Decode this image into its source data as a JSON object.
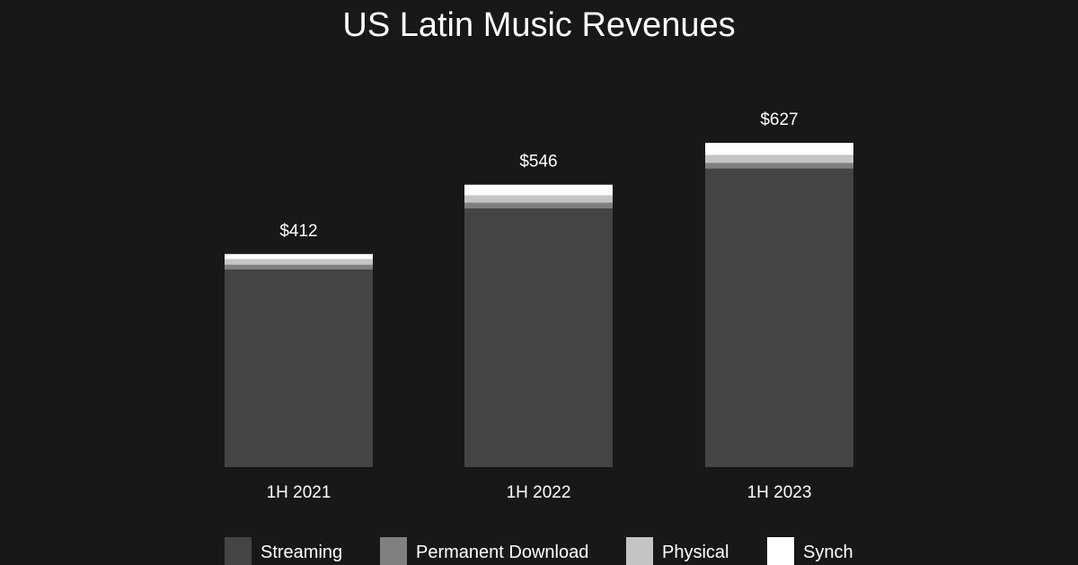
{
  "chart_data": {
    "type": "bar",
    "stacked": true,
    "title": "US Latin Music Revenues",
    "categories": [
      "1H 2021",
      "1H 2022",
      "1H 2023"
    ],
    "totals": [
      "$412",
      "$546",
      "$627"
    ],
    "total_values": [
      412,
      546,
      627
    ],
    "series": [
      {
        "name": "Streaming",
        "color": "#444444",
        "values": [
          382,
          500,
          577
        ]
      },
      {
        "name": "Permanent Download",
        "color": "#808080",
        "values": [
          9,
          11,
          11
        ]
      },
      {
        "name": "Physical",
        "color": "#c4c4c4",
        "values": [
          11,
          14,
          15
        ]
      },
      {
        "name": "Synch",
        "color": "#ffffff",
        "values": [
          10,
          21,
          24
        ]
      }
    ],
    "ylim": [
      0,
      627
    ],
    "grid": false,
    "legend_position": "bottom"
  }
}
